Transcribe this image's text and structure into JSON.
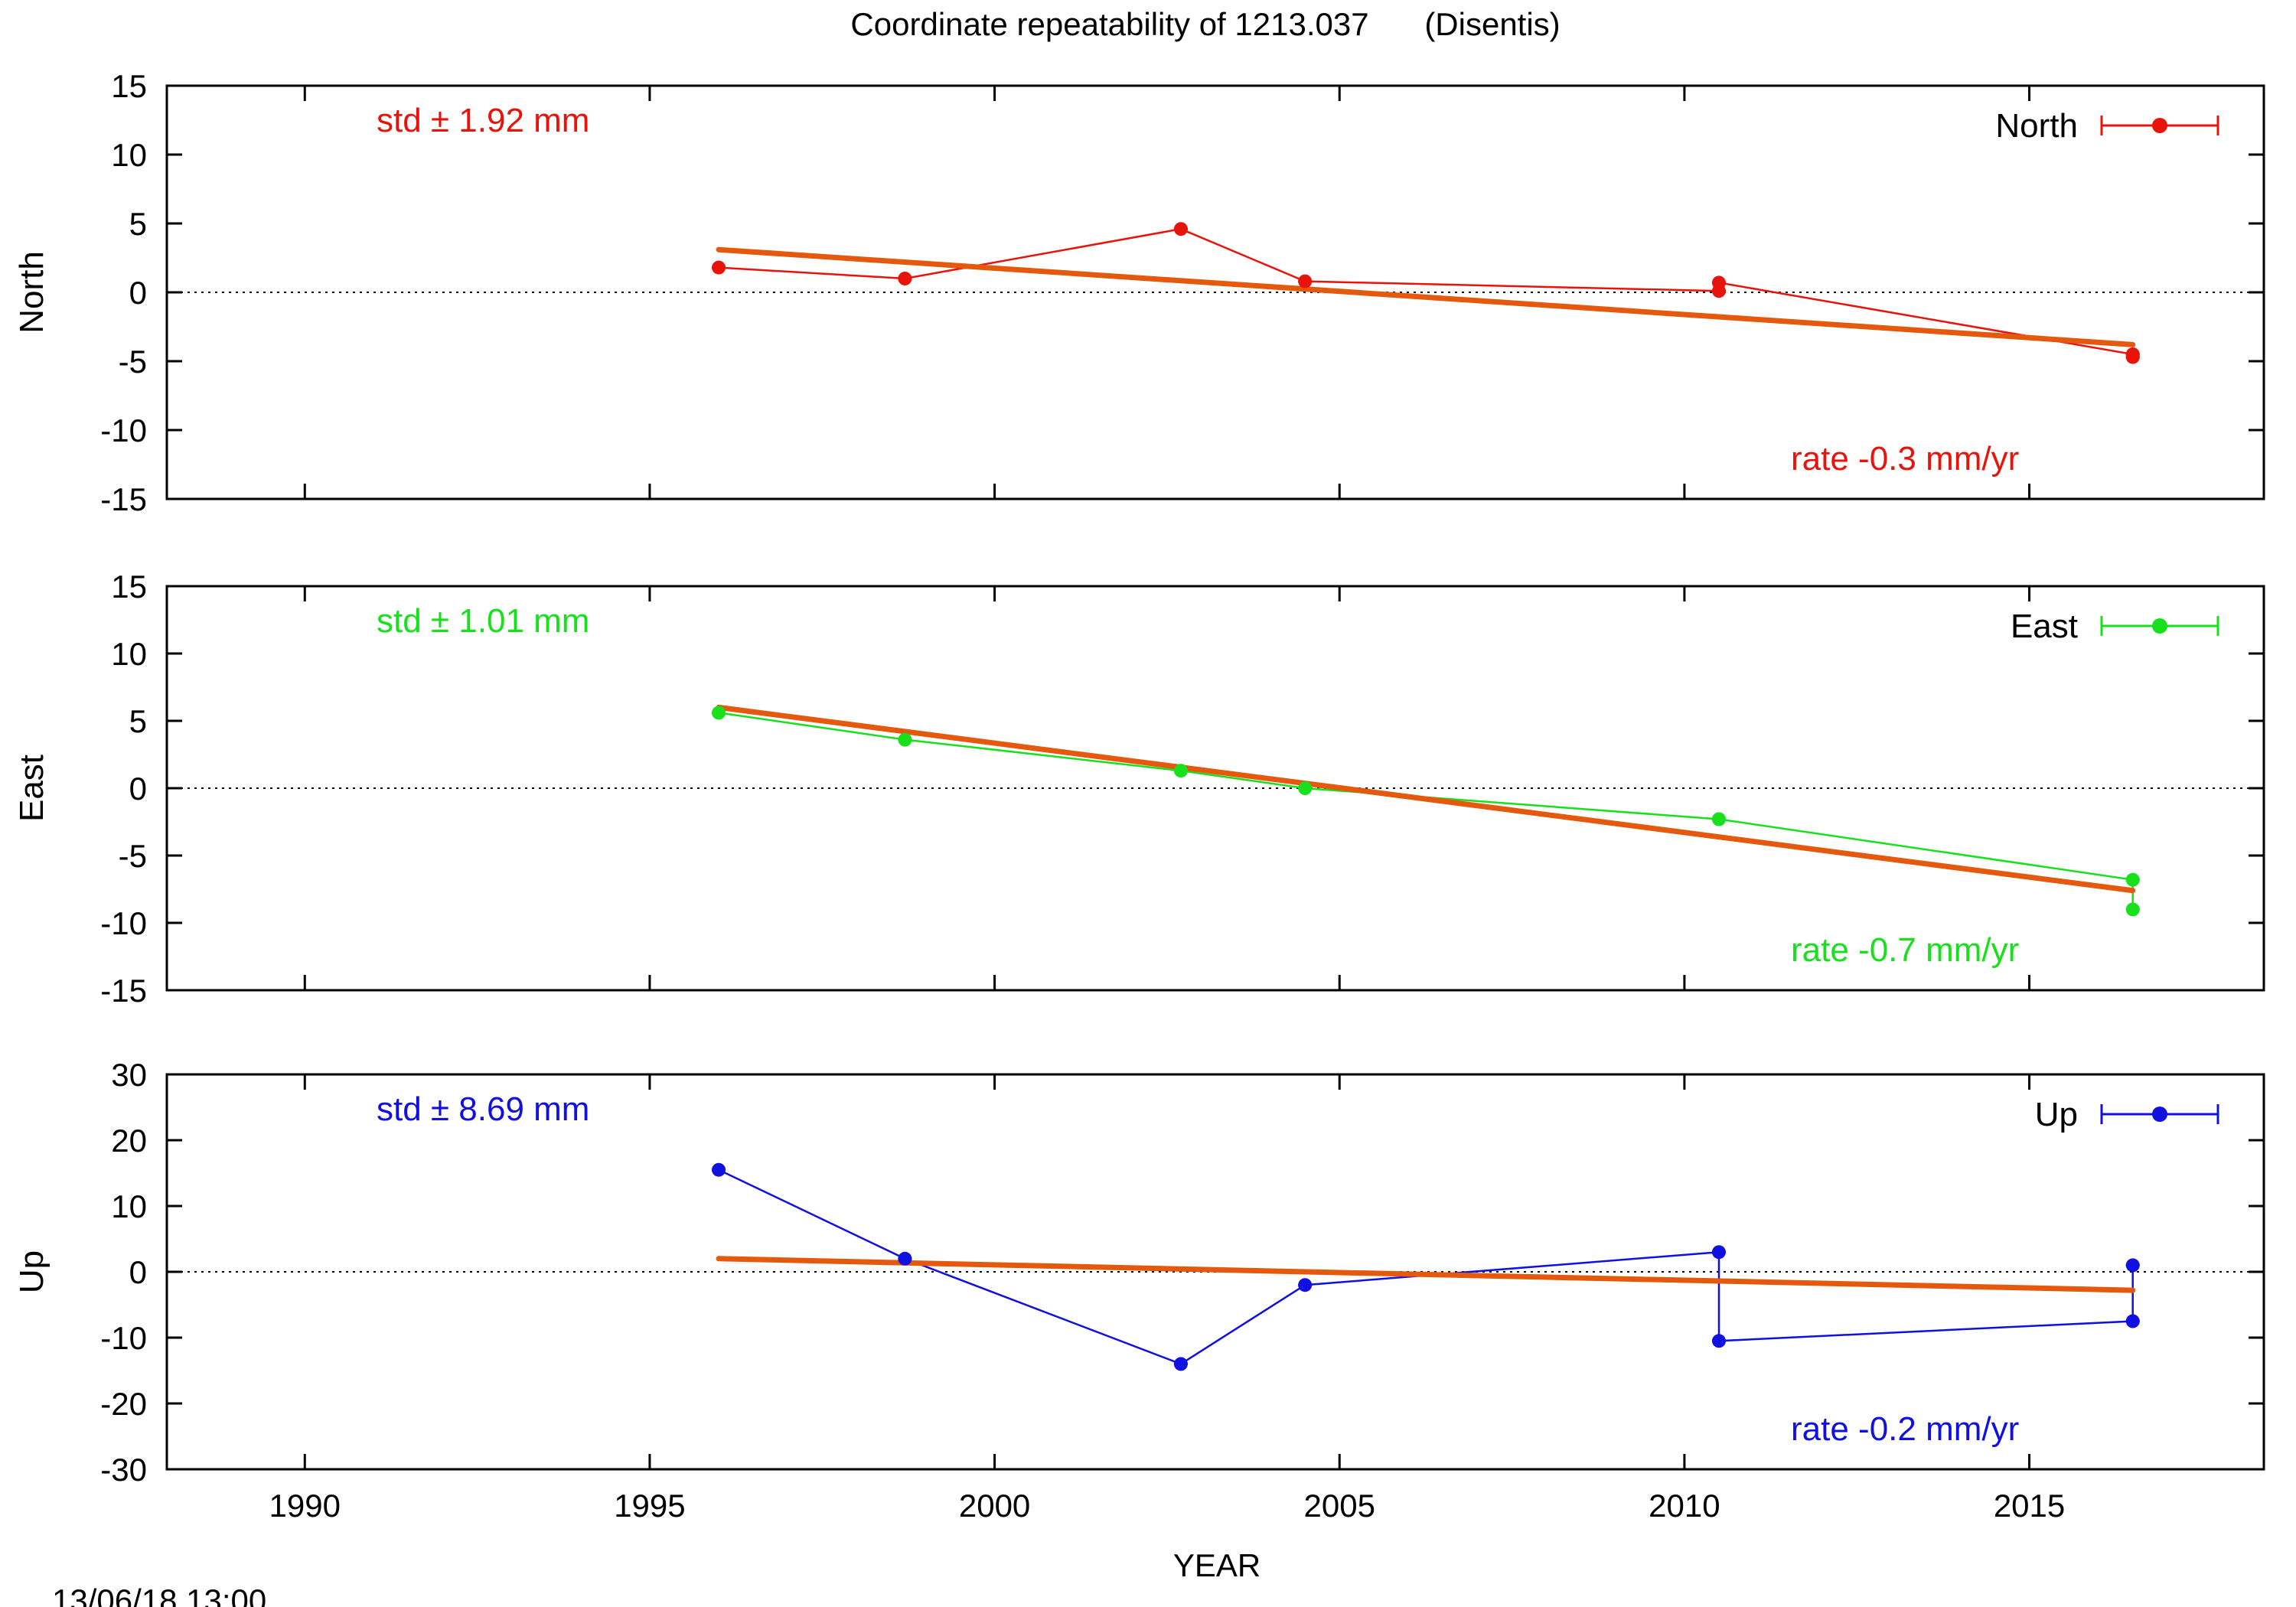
{
  "figure": {
    "title": "Coordinate repeatability of 1213.037",
    "site": "(Disentis)",
    "timestamp": "13/06/18 13:00",
    "xlabel": "YEAR"
  },
  "chart_data": [
    {
      "type": "line",
      "component": "North",
      "ylabel": "North",
      "legend_label": "North",
      "legend_position": "top-right",
      "color": "#e8140c",
      "fit_color": "#e4590e",
      "std_text": "std ± 1.92 mm",
      "rate_text": "rate -0.3 mm/yr",
      "xlim": [
        1988,
        2018.4
      ],
      "ylim": [
        -15,
        15
      ],
      "xticks": [
        1990,
        1995,
        2000,
        2005,
        2010,
        2015
      ],
      "yticks": [
        -15,
        -10,
        -5,
        0,
        5,
        10,
        15
      ],
      "zero_line": true,
      "x": [
        1996.0,
        1998.7,
        2002.7,
        2004.5,
        2010.5,
        2010.5,
        2016.5,
        2016.5
      ],
      "y": [
        1.8,
        1.0,
        4.6,
        0.8,
        0.1,
        0.7,
        -4.5,
        -4.7
      ],
      "fit": {
        "x": [
          1996.0,
          2016.5
        ],
        "y": [
          3.1,
          -3.8
        ]
      }
    },
    {
      "type": "line",
      "component": "East",
      "ylabel": "East",
      "legend_label": "East",
      "legend_position": "top-right",
      "color": "#18e01c",
      "fit_color": "#e4590e",
      "std_text": "std ± 1.01 mm",
      "rate_text": "rate -0.7 mm/yr",
      "xlim": [
        1988,
        2018.4
      ],
      "ylim": [
        -15,
        15
      ],
      "xticks": [
        1990,
        1995,
        2000,
        2005,
        2010,
        2015
      ],
      "yticks": [
        -15,
        -10,
        -5,
        0,
        5,
        10,
        15
      ],
      "zero_line": true,
      "x": [
        1996.0,
        1998.7,
        2002.7,
        2004.5,
        2010.5,
        2010.5,
        2016.5,
        2016.5
      ],
      "y": [
        5.6,
        3.6,
        1.3,
        0.0,
        -2.3,
        -2.3,
        -6.8,
        -9.0
      ],
      "fit": {
        "x": [
          1996.0,
          2016.5
        ],
        "y": [
          6.0,
          -7.6
        ]
      }
    },
    {
      "type": "line",
      "component": "Up",
      "ylabel": "Up",
      "legend_label": "Up",
      "legend_position": "top-right",
      "color": "#1010e0",
      "fit_color": "#e4590e",
      "std_text": "std ± 8.69 mm",
      "rate_text": "rate -0.2 mm/yr",
      "xlim": [
        1988,
        2018.4
      ],
      "ylim": [
        -30,
        30
      ],
      "xticks": [
        1990,
        1995,
        2000,
        2005,
        2010,
        2015
      ],
      "xticklabels": [
        "1990",
        "1995",
        "2000",
        "2005",
        "2010",
        "2015"
      ],
      "yticks": [
        -30,
        -20,
        -10,
        0,
        10,
        20,
        30
      ],
      "zero_line": true,
      "x": [
        1996.0,
        1998.7,
        2002.7,
        2004.5,
        2010.5,
        2010.5,
        2016.5,
        2016.5
      ],
      "y": [
        15.5,
        2.0,
        -14.0,
        -2.0,
        3.0,
        -10.5,
        -7.5,
        1.0
      ],
      "fit": {
        "x": [
          1996.0,
          2016.5
        ],
        "y": [
          2.0,
          -2.8
        ]
      }
    }
  ]
}
